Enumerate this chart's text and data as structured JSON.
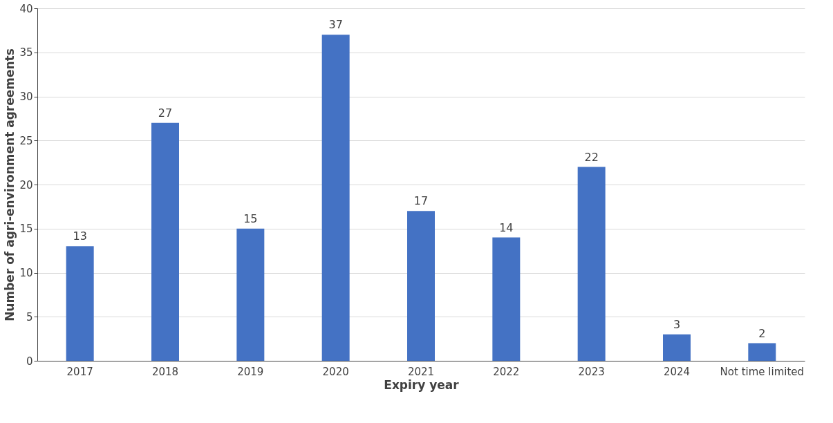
{
  "chart_data": {
    "type": "bar",
    "categories": [
      "2017",
      "2018",
      "2019",
      "2020",
      "2021",
      "2022",
      "2023",
      "2024",
      "Not time limited"
    ],
    "values": [
      13,
      27,
      15,
      37,
      17,
      14,
      22,
      3,
      2
    ],
    "color": "#4472c4",
    "xlabel": "Expiry year",
    "ylabel": "Number of agri-environment agreements",
    "ylim": [
      0,
      40
    ],
    "yticks": [
      0,
      5,
      10,
      15,
      20,
      25,
      30,
      35,
      40
    ],
    "grid": "y",
    "data_labels": true
  }
}
